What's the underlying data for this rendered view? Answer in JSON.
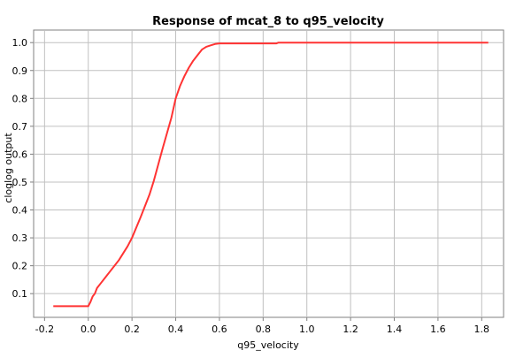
{
  "chart_data": {
    "type": "line",
    "title": "Response of mcat_8 to q95_velocity",
    "xlabel": "q95_velocity",
    "ylabel": "cloglog output",
    "xlim": [
      -0.25,
      1.9
    ],
    "ylim": [
      0.015,
      1.045
    ],
    "x_ticks": [
      -0.2,
      0.0,
      0.2,
      0.4,
      0.6,
      0.8,
      1.0,
      1.2,
      1.4,
      1.6,
      1.8
    ],
    "x_tick_labels": [
      "-0.2",
      "0.0",
      "0.2",
      "0.4",
      "0.6",
      "0.8",
      "1.0",
      "1.2",
      "1.4",
      "1.6",
      "1.8"
    ],
    "y_ticks": [
      0.1,
      0.2,
      0.3,
      0.4,
      0.5,
      0.6,
      0.7,
      0.8,
      0.9,
      1.0
    ],
    "y_tick_labels": [
      "0.1",
      "0.2",
      "0.3",
      "0.4",
      "0.5",
      "0.6",
      "0.7",
      "0.8",
      "0.9",
      "1.0"
    ],
    "grid": true,
    "series": [
      {
        "color": "#ff3333",
        "x": [
          -0.16,
          -0.1,
          0.0,
          0.01,
          0.02,
          0.03,
          0.04,
          0.06,
          0.08,
          0.1,
          0.12,
          0.14,
          0.16,
          0.18,
          0.2,
          0.24,
          0.28,
          0.3,
          0.34,
          0.38,
          0.4,
          0.42,
          0.44,
          0.46,
          0.48,
          0.5,
          0.52,
          0.54,
          0.56,
          0.58,
          0.6,
          0.7,
          0.86,
          0.87,
          1.0,
          1.2,
          1.4,
          1.6,
          1.83
        ],
        "y": [
          0.055,
          0.055,
          0.055,
          0.07,
          0.09,
          0.1,
          0.12,
          0.14,
          0.16,
          0.18,
          0.2,
          0.22,
          0.245,
          0.27,
          0.3,
          0.375,
          0.455,
          0.505,
          0.62,
          0.73,
          0.8,
          0.845,
          0.88,
          0.91,
          0.935,
          0.955,
          0.975,
          0.985,
          0.99,
          0.995,
          0.997,
          0.997,
          0.997,
          1.0,
          1.0,
          1.0,
          1.0,
          1.0,
          1.0
        ]
      }
    ]
  }
}
